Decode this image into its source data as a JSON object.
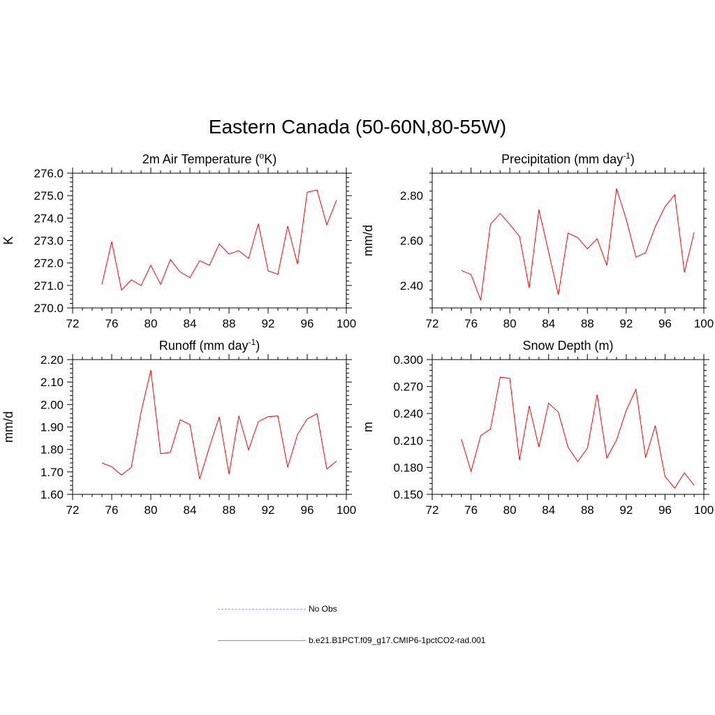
{
  "title": "Eastern Canada (50-60N,80-55W)",
  "legend": {
    "items": [
      {
        "label": "No Obs",
        "color": "#9999ff",
        "style": "dashed"
      },
      {
        "label": "b.e21.B1PCT.f09_g17.CMIP6-1pctCO2-rad.001",
        "color": "#ff0000",
        "style": "solid"
      }
    ]
  },
  "chart_data": [
    {
      "type": "line",
      "title": "2m Air Temperature (",
      "title_sup": "o",
      "title_end": "K)",
      "ylabel": "K",
      "xlabel": "",
      "xlim": [
        72,
        100
      ],
      "ylim": [
        270.0,
        276.0
      ],
      "xticks": [
        72,
        76,
        80,
        84,
        88,
        92,
        96,
        100
      ],
      "yticks": [
        270.0,
        271.0,
        272.0,
        273.0,
        274.0,
        275.0,
        276.0
      ],
      "ytick_labels": [
        "270.0",
        "271.0",
        "272.0",
        "273.0",
        "274.0",
        "275.0",
        "276.0"
      ],
      "grid": false,
      "series": [
        {
          "name": "b.e21.B1PCT.f09_g17.CMIP6-1pctCO2-rad.001",
          "color": "#ff0000",
          "x": [
            75,
            76,
            77,
            78,
            79,
            80,
            81,
            82,
            83,
            84,
            85,
            86,
            87,
            88,
            89,
            90,
            91,
            92,
            93,
            94,
            95,
            96,
            97,
            98,
            99
          ],
          "y": [
            271.05,
            272.95,
            270.8,
            271.25,
            271.0,
            271.9,
            271.05,
            272.15,
            271.6,
            271.35,
            272.1,
            271.9,
            272.85,
            272.4,
            272.55,
            272.2,
            273.75,
            271.65,
            271.5,
            273.65,
            271.95,
            275.15,
            275.25,
            273.7,
            274.8
          ]
        }
      ]
    },
    {
      "type": "line",
      "title": "Precipitation (mm day",
      "title_sup": "-1",
      "title_end": ")",
      "ylabel": "mm/d",
      "xlabel": "",
      "xlim": [
        72,
        100
      ],
      "ylim": [
        2.3,
        2.9
      ],
      "xticks": [
        72,
        76,
        80,
        84,
        88,
        92,
        96,
        100
      ],
      "yticks": [
        2.4,
        2.6,
        2.8
      ],
      "ytick_labels": [
        "2.40",
        "2.60",
        "2.80"
      ],
      "grid": false,
      "series": [
        {
          "name": "b.e21.B1PCT.f09_g17.CMIP6-1pctCO2-rad.001",
          "color": "#ff0000",
          "x": [
            75,
            76,
            77,
            78,
            79,
            80,
            81,
            82,
            83,
            84,
            85,
            86,
            87,
            88,
            89,
            90,
            91,
            92,
            93,
            94,
            95,
            96,
            97,
            98,
            99
          ],
          "y": [
            2.467,
            2.449,
            2.334,
            2.672,
            2.721,
            2.672,
            2.618,
            2.389,
            2.738,
            2.549,
            2.359,
            2.633,
            2.613,
            2.563,
            2.608,
            2.489,
            2.832,
            2.694,
            2.526,
            2.546,
            2.662,
            2.751,
            2.804,
            2.459,
            2.636
          ]
        }
      ]
    },
    {
      "type": "line",
      "title": "Runoff (mm day",
      "title_sup": "-1",
      "title_end": ")",
      "ylabel": "mm/d",
      "xlabel": "",
      "xlim": [
        72,
        100
      ],
      "ylim": [
        1.6,
        2.2
      ],
      "xticks": [
        72,
        76,
        80,
        84,
        88,
        92,
        96,
        100
      ],
      "yticks": [
        1.6,
        1.7,
        1.8,
        1.9,
        2.0,
        2.1,
        2.2
      ],
      "ytick_labels": [
        "1.60",
        "1.70",
        "1.80",
        "1.90",
        "2.00",
        "2.10",
        "2.20"
      ],
      "grid": false,
      "series": [
        {
          "name": "b.e21.B1PCT.f09_g17.CMIP6-1pctCO2-rad.001",
          "color": "#ff0000",
          "x": [
            75,
            76,
            77,
            78,
            79,
            80,
            81,
            82,
            83,
            84,
            85,
            86,
            87,
            88,
            89,
            90,
            91,
            92,
            93,
            94,
            95,
            96,
            97,
            98,
            99
          ],
          "y": [
            1.74,
            1.723,
            1.686,
            1.72,
            1.966,
            2.153,
            1.781,
            1.787,
            1.932,
            1.911,
            1.668,
            1.812,
            1.945,
            1.69,
            1.95,
            1.798,
            1.924,
            1.946,
            1.949,
            1.72,
            1.866,
            1.936,
            1.959,
            1.713,
            1.748
          ]
        }
      ]
    },
    {
      "type": "line",
      "title": "Snow Depth (m)",
      "title_sup": "",
      "title_end": "",
      "ylabel": "m",
      "xlabel": "",
      "xlim": [
        72,
        100
      ],
      "ylim": [
        0.15,
        0.3
      ],
      "xticks": [
        72,
        76,
        80,
        84,
        88,
        92,
        96,
        100
      ],
      "yticks": [
        0.15,
        0.18,
        0.21,
        0.24,
        0.27,
        0.3
      ],
      "ytick_labels": [
        "0.150",
        "0.180",
        "0.210",
        "0.240",
        "0.270",
        "0.300"
      ],
      "grid": false,
      "series": [
        {
          "name": "b.e21.B1PCT.f09_g17.CMIP6-1pctCO2-rad.001",
          "color": "#ff0000",
          "x": [
            75,
            76,
            77,
            78,
            79,
            80,
            81,
            82,
            83,
            84,
            85,
            86,
            87,
            88,
            89,
            90,
            91,
            92,
            93,
            94,
            95,
            96,
            97,
            98,
            99
          ],
          "y": [
            0.2115,
            0.1755,
            0.2155,
            0.2225,
            0.2805,
            0.279,
            0.188,
            0.2485,
            0.2025,
            0.2515,
            0.2415,
            0.2025,
            0.1865,
            0.2015,
            0.261,
            0.1905,
            0.2105,
            0.2435,
            0.267,
            0.191,
            0.2265,
            0.17,
            0.157,
            0.174,
            0.16
          ]
        }
      ]
    }
  ]
}
